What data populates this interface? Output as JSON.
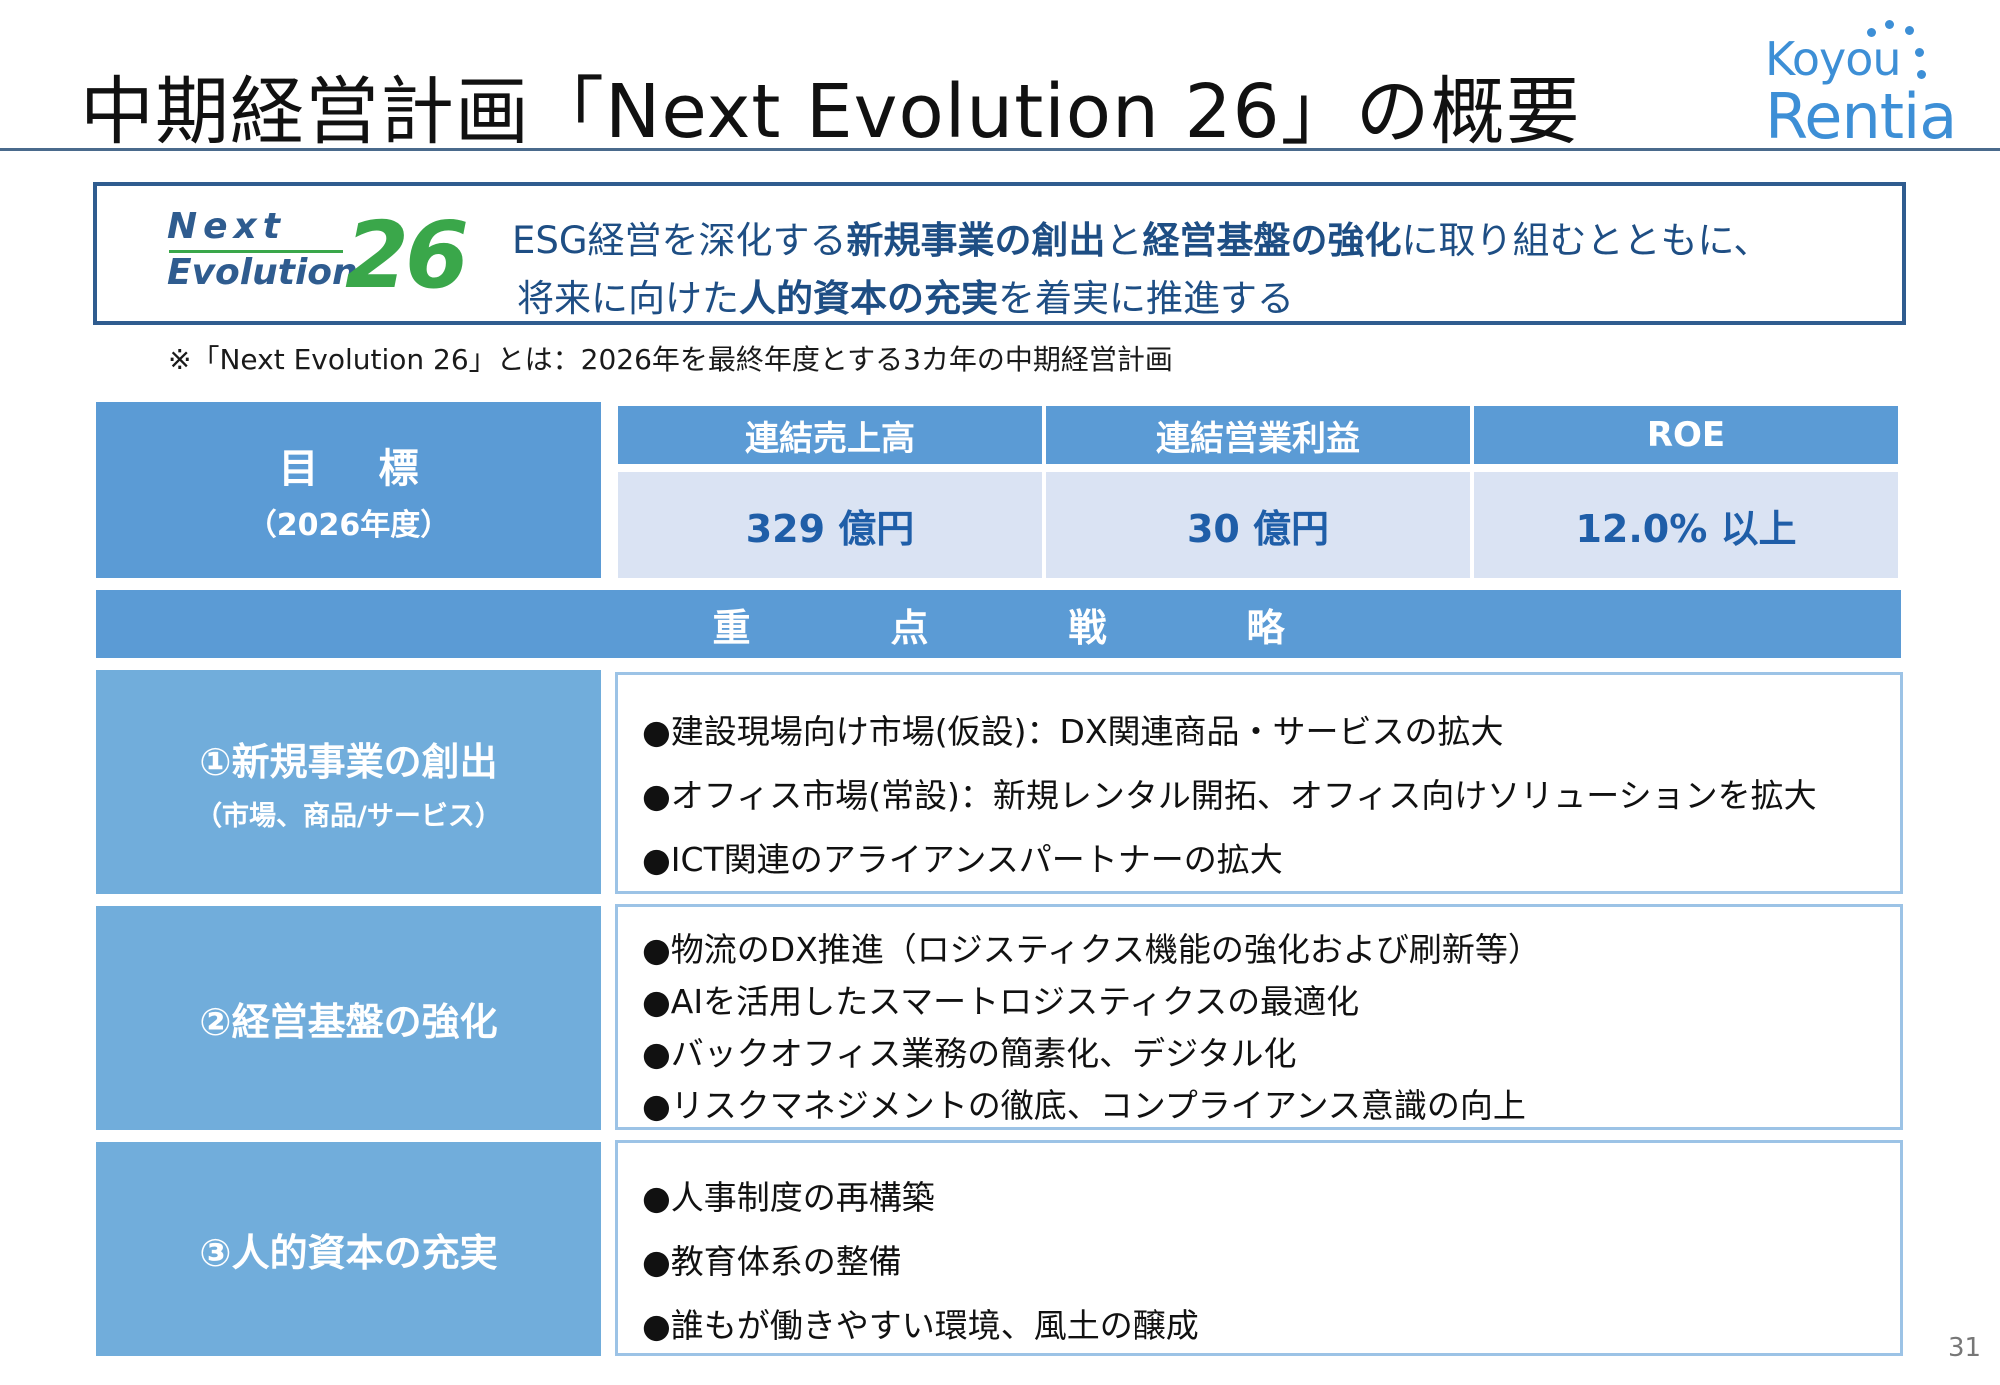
{
  "header": {
    "title": "中期経営計画「Next Evolution 26」の概要",
    "logo": {
      "line1": "Koyou",
      "line2": "Rentia"
    }
  },
  "vision": {
    "logo": {
      "next": "Next",
      "evolution": "Evolution",
      "number": "26"
    },
    "line1": [
      {
        "text": "ESG経営を深化する",
        "bold": false
      },
      {
        "text": "新規事業の創出",
        "bold": true
      },
      {
        "text": "と",
        "bold": false
      },
      {
        "text": "経営基盤の強化",
        "bold": true
      },
      {
        "text": "に取り組むとともに、",
        "bold": false
      }
    ],
    "line2": [
      {
        "text": "将来に向けた",
        "bold": false
      },
      {
        "text": "人的資本の充実",
        "bold": true
      },
      {
        "text": "を着実に推進する",
        "bold": false
      }
    ]
  },
  "footnote": "※「Next Evolution 26」とは：2026年を最終年度とする3カ年の中期経営計画",
  "targets": {
    "label": "目標",
    "sublabel": "（2026年度）",
    "items": [
      {
        "header": "連結売上高",
        "value": "329 億円"
      },
      {
        "header": "連結営業利益",
        "value": "30 億円"
      },
      {
        "header": "ROE",
        "value": "12.0% 以上"
      }
    ]
  },
  "strategy_band": [
    "重",
    "点",
    "戦",
    "略"
  ],
  "strategies": [
    {
      "label": "①新規事業の創出",
      "sublabel": "（市場、商品/サービス）",
      "items": [
        "●建設現場向け市場(仮設)：DX関連商品・サービスの拡大",
        "●オフィス市場(常設)：新規レンタル開拓、オフィス向けソリューションを拡大",
        "●ICT関連のアライアンスパートナーの拡大"
      ]
    },
    {
      "label": "②経営基盤の強化",
      "sublabel": "",
      "items": [
        "●物流のDX推進（ロジスティクス機能の強化および刷新等）",
        "●AIを活用したスマートロジスティクスの最適化",
        "●バックオフィス業務の簡素化、デジタル化",
        "●リスクマネジメントの徹底、コンプライアンス意識の向上"
      ]
    },
    {
      "label": "③人的資本の充実",
      "sublabel": "",
      "items": [
        "●人事制度の再構築",
        "●教育体系の整備",
        "●誰もが働きやすい環境、風土の醸成"
      ]
    }
  ],
  "page_number": "31"
}
